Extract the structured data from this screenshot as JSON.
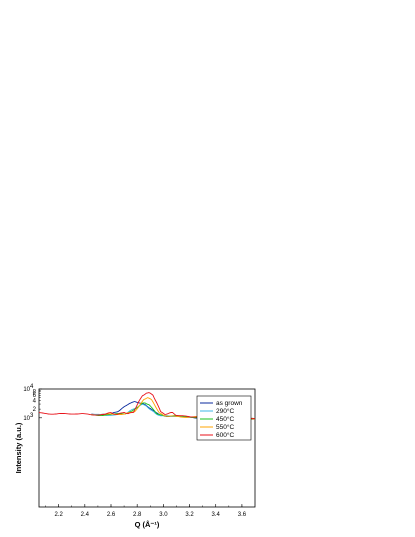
{
  "chart_data": {
    "type": "line",
    "title": "",
    "xlabel": "Q (Å⁻¹)",
    "ylabel": "Intensity (a.u.)",
    "xlim": [
      2.05,
      3.7
    ],
    "ylim": [
      0.8,
      10000
    ],
    "y_scale": "log",
    "x_ticks": [
      2.2,
      2.4,
      2.6,
      2.8,
      3.0,
      3.2,
      3.4,
      3.6
    ],
    "x_tick_labels": [
      "2.2",
      "2.4",
      "2.6",
      "2.8",
      "3.0",
      "3.2",
      "3.4",
      "3.6"
    ],
    "y_major_ticks": [
      {
        "value": 1000,
        "base": "10",
        "exp": "3"
      },
      {
        "value": 10000,
        "base": "10",
        "exp": "4"
      }
    ],
    "y_minor_ticks": [
      {
        "value": 2000,
        "label": "2"
      },
      {
        "value": 4000,
        "label": "4"
      },
      {
        "value": 6000,
        "label": "6"
      },
      {
        "value": 8000,
        "label": "8"
      },
      {
        "value": 3000,
        "label": "3"
      },
      {
        "value": 5000,
        "label": "5"
      },
      {
        "value": 7000,
        "label": "7"
      },
      {
        "value": 9000,
        "label": "9"
      },
      {
        "value": 1500,
        "label": "2"
      },
      {
        "value": 1200,
        "label": "4"
      },
      {
        "value": 1100,
        "label": "6"
      },
      {
        "value": 1050,
        "label": "8"
      },
      {
        "value": 950,
        "label": "2"
      },
      {
        "value": 900,
        "label": "4"
      },
      {
        "value": 850,
        "label": "6"
      },
      {
        "value": 820,
        "label": "8"
      }
    ],
    "grid": false,
    "legend_position": "top-right",
    "series": [
      {
        "name": "as grown",
        "color": "#0a2a9e",
        "x": [
          2.45,
          2.55,
          2.6,
          2.65,
          2.7,
          2.74,
          2.78,
          2.82,
          2.86,
          2.9,
          2.94,
          2.98,
          3.05,
          3.15,
          3.3,
          3.5,
          3.7
        ],
        "y": [
          1300,
          1300,
          1400,
          1700,
          2300,
          3100,
          3500,
          3400,
          2900,
          2200,
          1500,
          1250,
          1150,
          1080,
          1000,
          950,
          900
        ]
      },
      {
        "name": "290°C",
        "color": "#3fb7e6",
        "x": [
          2.45,
          2.55,
          2.65,
          2.72,
          2.78,
          2.82,
          2.84,
          2.87,
          2.9,
          2.94,
          2.98,
          3.05,
          3.2,
          3.4,
          3.7
        ],
        "y": [
          1250,
          1250,
          1300,
          1500,
          2100,
          2700,
          2800,
          2500,
          1900,
          1400,
          1220,
          1150,
          1070,
          990,
          900
        ]
      },
      {
        "name": "450°C",
        "color": "#18c21e",
        "x": [
          2.45,
          2.6,
          2.7,
          2.76,
          2.8,
          2.84,
          2.86,
          2.89,
          2.92,
          2.95,
          2.98,
          3.05,
          3.2,
          3.4,
          3.7
        ],
        "y": [
          1250,
          1300,
          1350,
          1600,
          2300,
          3200,
          3400,
          3000,
          2000,
          1400,
          1230,
          1150,
          1070,
          990,
          900
        ]
      },
      {
        "name": "550°C",
        "color": "#ffa500",
        "x": [
          2.45,
          2.6,
          2.7,
          2.78,
          2.82,
          2.85,
          2.88,
          2.91,
          2.94,
          2.97,
          3.0,
          3.05,
          3.2,
          3.4,
          3.7
        ],
        "y": [
          1250,
          1300,
          1350,
          1700,
          2700,
          4200,
          5000,
          4000,
          2500,
          1500,
          1250,
          1160,
          1070,
          990,
          900
        ]
      },
      {
        "name": "600°C",
        "color": "#e8121a",
        "x": [
          2.05,
          2.15,
          2.25,
          2.35,
          2.45,
          2.55,
          2.6,
          2.65,
          2.7,
          2.73,
          2.77,
          2.81,
          2.84,
          2.87,
          2.89,
          2.92,
          2.95,
          2.98,
          3.01,
          3.04,
          3.07,
          3.1,
          3.2,
          3.4,
          3.7
        ],
        "y": [
          1450,
          1420,
          1380,
          1330,
          1300,
          1320,
          1500,
          1350,
          1600,
          1350,
          1500,
          3400,
          5800,
          7500,
          7600,
          6300,
          3400,
          1550,
          1300,
          1380,
          1500,
          1250,
          1080,
          990,
          900
        ]
      }
    ]
  }
}
